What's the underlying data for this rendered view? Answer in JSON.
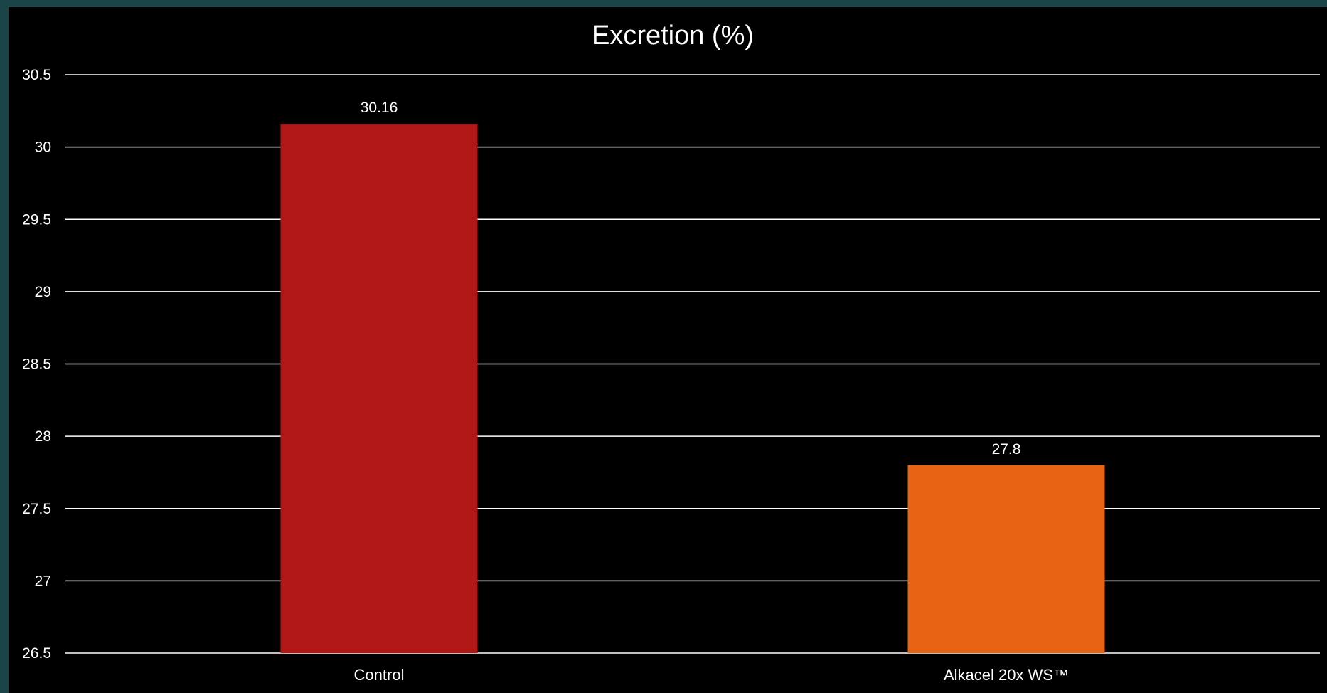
{
  "chart_data": {
    "type": "bar",
    "title": "Excretion (%)",
    "xlabel": "",
    "ylabel": "",
    "categories": [
      "Control",
      "Alkacel 20x WS™"
    ],
    "values": [
      30.16,
      27.8
    ],
    "data_labels": [
      "30.16",
      "27.8"
    ],
    "colors": [
      "#b01716",
      "#e96315"
    ],
    "ylim": [
      26.5,
      30.5
    ],
    "yticks": [
      26.5,
      27,
      27.5,
      28,
      28.5,
      29,
      29.5,
      30,
      30.5
    ],
    "ytick_labels": [
      "26.5",
      "27",
      "27.5",
      "28",
      "28.5",
      "29",
      "29.5",
      "30",
      "30.5"
    ],
    "grid": true,
    "legend": "none"
  },
  "style": {
    "background": "#000000",
    "frame": "#1b4448",
    "text_color": "#ffffff",
    "gridline_color": "#ffffff"
  }
}
